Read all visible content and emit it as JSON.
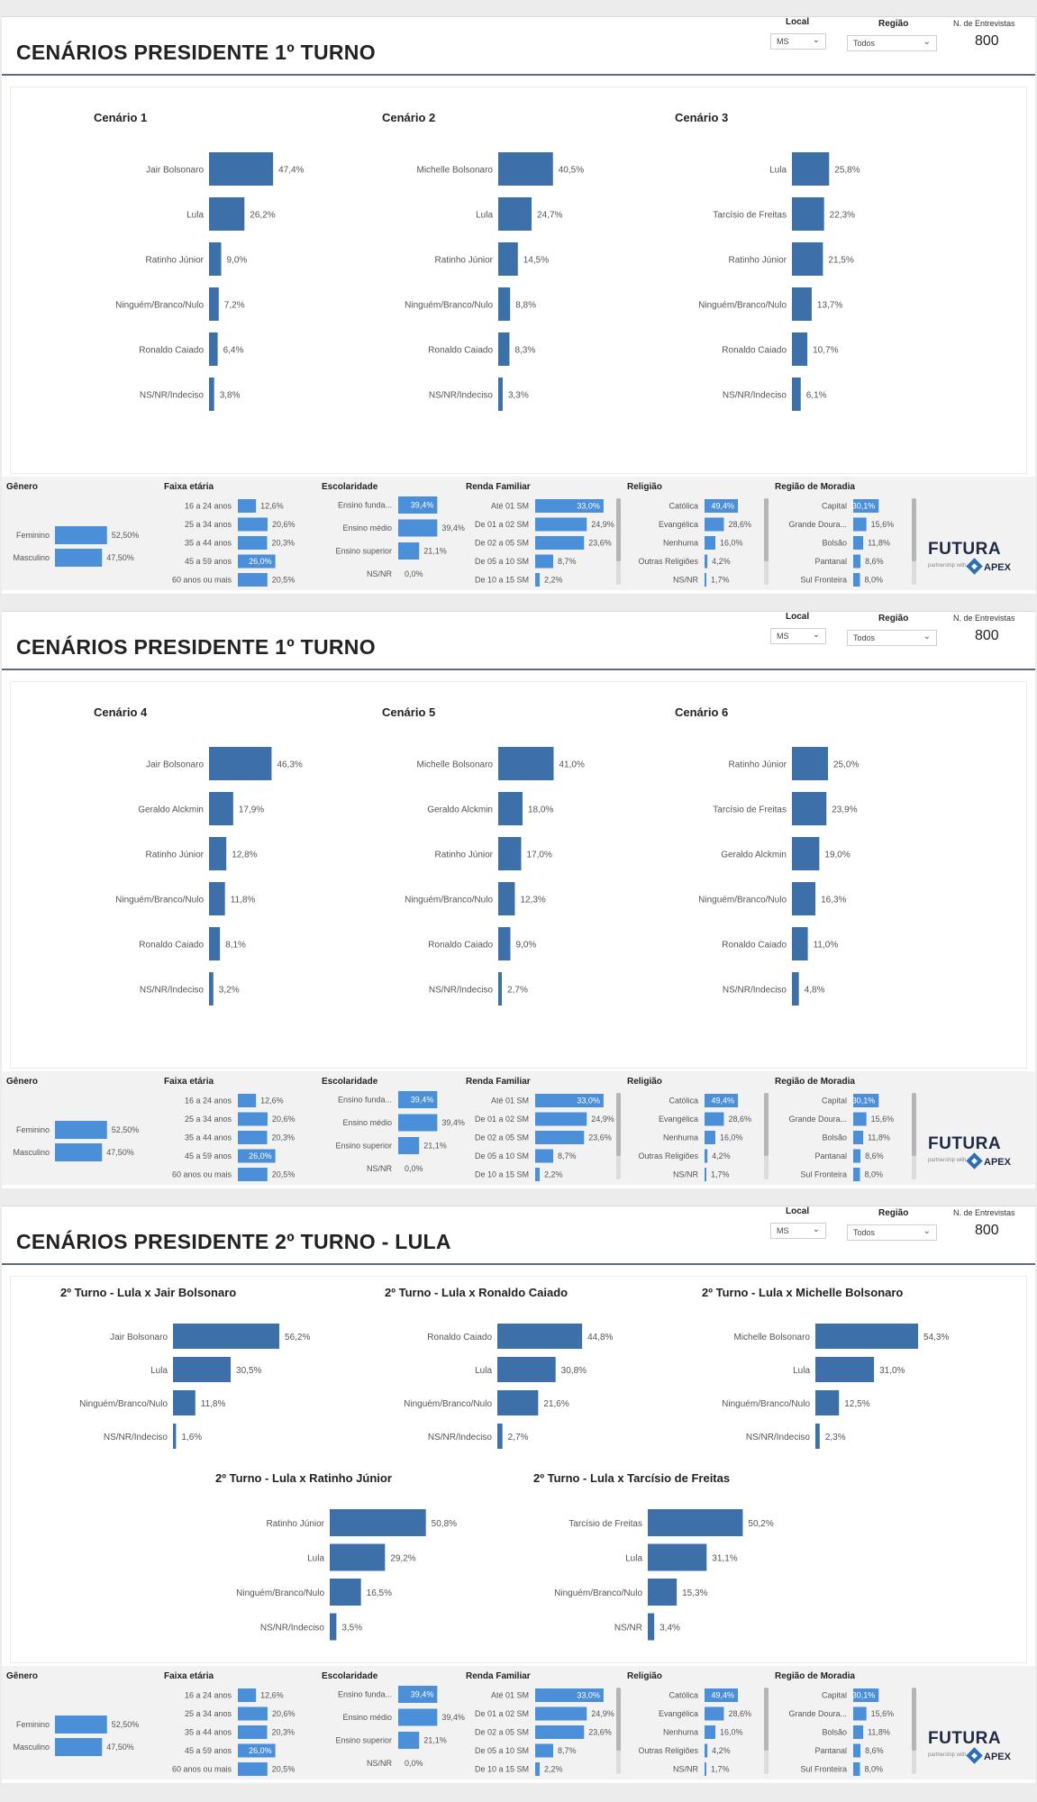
{
  "filters": {
    "local_label": "Local",
    "local_value": "MS",
    "regiao_label": "Região",
    "regiao_value": "Todos",
    "entrevistas_label": "N. de Entrevistas",
    "entrevistas_value": "800"
  },
  "logo": {
    "main": "FUTURA",
    "sub": "partnership with",
    "brand": "APEX"
  },
  "colors": {
    "bar": "#3d6fa8",
    "demo_bar": "#4a8fd8",
    "highlight": "#4a8fd8"
  },
  "sections": [
    {
      "title": "CENÁRIOS PRESIDENTE 1º TURNO",
      "layout": "first",
      "charts": [
        {
          "title": "Cenário 1",
          "items": [
            [
              "Jair Bolsonaro",
              47.4,
              "47,4%"
            ],
            [
              "Lula",
              26.2,
              "26,2%"
            ],
            [
              "Ratinho Júnior",
              9.0,
              "9,0%"
            ],
            [
              "Ninguém/Branco/Nulo",
              7.2,
              "7,2%"
            ],
            [
              "Ronaldo Caiado",
              6.4,
              "6,4%"
            ],
            [
              "NS/NR/Indeciso",
              3.8,
              "3,8%"
            ]
          ]
        },
        {
          "title": "Cenário 2",
          "items": [
            [
              "Michelle Bolsonaro",
              40.5,
              "40,5%"
            ],
            [
              "Lula",
              24.7,
              "24,7%"
            ],
            [
              "Ratinho Júnior",
              14.5,
              "14,5%"
            ],
            [
              "Ninguém/Branco/Nulo",
              8.8,
              "8,8%"
            ],
            [
              "Ronaldo Caiado",
              8.3,
              "8,3%"
            ],
            [
              "NS/NR/Indeciso",
              3.3,
              "3,3%"
            ]
          ]
        },
        {
          "title": "Cenário 3",
          "items": [
            [
              "Lula",
              25.8,
              "25,8%"
            ],
            [
              "Tarcísio de Freitas",
              22.3,
              "22,3%"
            ],
            [
              "Ratinho Júnior",
              21.5,
              "21,5%"
            ],
            [
              "Ninguém/Branco/Nulo",
              13.7,
              "13,7%"
            ],
            [
              "Ronaldo Caiado",
              10.7,
              "10,7%"
            ],
            [
              "NS/NR/Indeciso",
              6.1,
              "6,1%"
            ]
          ]
        }
      ]
    },
    {
      "title": "CENÁRIOS PRESIDENTE 1º TURNO",
      "layout": "first",
      "charts": [
        {
          "title": "Cenário 4",
          "items": [
            [
              "Jair Bolsonaro",
              46.3,
              "46,3%"
            ],
            [
              "Geraldo Alckmin",
              17.9,
              "17,9%"
            ],
            [
              "Ratinho Júnior",
              12.8,
              "12,8%"
            ],
            [
              "Ninguém/Branco/Nulo",
              11.8,
              "11,8%"
            ],
            [
              "Ronaldo Caiado",
              8.1,
              "8,1%"
            ],
            [
              "NS/NR/Indeciso",
              3.2,
              "3,2%"
            ]
          ]
        },
        {
          "title": "Cenário 5",
          "items": [
            [
              "Michelle Bolsonaro",
              41.0,
              "41,0%"
            ],
            [
              "Geraldo Alckmin",
              18.0,
              "18,0%"
            ],
            [
              "Ratinho Júnior",
              17.0,
              "17,0%"
            ],
            [
              "Ninguém/Branco/Nulo",
              12.3,
              "12,3%"
            ],
            [
              "Ronaldo Caiado",
              9.0,
              "9,0%"
            ],
            [
              "NS/NR/Indeciso",
              2.7,
              "2,7%"
            ]
          ]
        },
        {
          "title": "Cenário 6",
          "items": [
            [
              "Ratinho Júnior",
              25.0,
              "25,0%"
            ],
            [
              "Tarcísio de Freitas",
              23.9,
              "23,9%"
            ],
            [
              "Geraldo Alckmin",
              19.0,
              "19,0%"
            ],
            [
              "Ninguém/Branco/Nulo",
              16.3,
              "16,3%"
            ],
            [
              "Ronaldo Caiado",
              11.0,
              "11,0%"
            ],
            [
              "NS/NR/Indeciso",
              4.8,
              "4,8%"
            ]
          ]
        }
      ]
    },
    {
      "title": "CENÁRIOS PRESIDENTE 2º TURNO - LULA",
      "layout": "second",
      "charts": [
        {
          "title": "2º Turno - Lula x Jair Bolsonaro",
          "items": [
            [
              "Jair Bolsonaro",
              56.2,
              "56,2%"
            ],
            [
              "Lula",
              30.5,
              "30,5%"
            ],
            [
              "Ninguém/Branco/Nulo",
              11.8,
              "11,8%"
            ],
            [
              "NS/NR/Indeciso",
              1.6,
              "1,6%"
            ]
          ]
        },
        {
          "title": "2º Turno - Lula x Ronaldo Caiado",
          "items": [
            [
              "Ronaldo Caiado",
              44.8,
              "44,8%"
            ],
            [
              "Lula",
              30.8,
              "30,8%"
            ],
            [
              "Ninguém/Branco/Nulo",
              21.6,
              "21,6%"
            ],
            [
              "NS/NR/Indeciso",
              2.7,
              "2,7%"
            ]
          ]
        },
        {
          "title": "2º Turno - Lula x Michelle Bolsonaro",
          "items": [
            [
              "Michelle Bolsonaro",
              54.3,
              "54,3%"
            ],
            [
              "Lula",
              31.0,
              "31,0%"
            ],
            [
              "Ninguém/Branco/Nulo",
              12.5,
              "12,5%"
            ],
            [
              "NS/NR/Indeciso",
              2.3,
              "2,3%"
            ]
          ]
        },
        {
          "title": "2º Turno - Lula x Ratinho Júnior",
          "items": [
            [
              "Ratinho Júnior",
              50.8,
              "50,8%"
            ],
            [
              "Lula",
              29.2,
              "29,2%"
            ],
            [
              "Ninguém/Branco/Nulo",
              16.5,
              "16,5%"
            ],
            [
              "NS/NR/Indeciso",
              3.5,
              "3,5%"
            ]
          ]
        },
        {
          "title": "2º Turno - Lula x Tarcísio de Freitas",
          "items": [
            [
              "Tarcísio de Freitas",
              50.2,
              "50,2%"
            ],
            [
              "Lula",
              31.1,
              "31,1%"
            ],
            [
              "Ninguém/Branco/Nulo",
              15.3,
              "15,3%"
            ],
            [
              "NS/NR",
              3.4,
              "3,4%"
            ]
          ]
        }
      ]
    }
  ],
  "demographics": {
    "genero": {
      "title": "Gênero",
      "items": [
        [
          "Feminino",
          52.5,
          "52,50%"
        ],
        [
          "Masculino",
          47.5,
          "47,50%"
        ]
      ]
    },
    "faixa": {
      "title": "Faixa etária",
      "highlight_index": 3,
      "items": [
        [
          "16 a 24 anos",
          12.6,
          "12,6%"
        ],
        [
          "25 a 34 anos",
          20.6,
          "20,6%"
        ],
        [
          "35 a 44 anos",
          20.3,
          "20,3%"
        ],
        [
          "45 a 59 anos",
          26.0,
          "26,0%"
        ],
        [
          "60 anos ou mais",
          20.5,
          "20,5%"
        ]
      ]
    },
    "escolaridade": {
      "title": "Escolaridade",
      "highlight_index": 0,
      "items": [
        [
          "Ensino funda...",
          39.4,
          "39,4%"
        ],
        [
          "Ensino médio",
          39.4,
          "39,4%"
        ],
        [
          "Ensino superior",
          21.1,
          "21,1%"
        ],
        [
          "NS/NR",
          0.0,
          "0,0%"
        ]
      ]
    },
    "renda": {
      "title": "Renda Familiar",
      "highlight_index": 0,
      "items": [
        [
          "Até 01 SM",
          33.0,
          "33,0%"
        ],
        [
          "De 01 a 02 SM",
          24.9,
          "24,9%"
        ],
        [
          "De 02 a 05 SM",
          23.6,
          "23,6%"
        ],
        [
          "De 05 a 10 SM",
          8.7,
          "8,7%"
        ],
        [
          "De 10 a 15 SM",
          2.2,
          "2,2%"
        ]
      ]
    },
    "religiao": {
      "title": "Religião",
      "highlight_index": 0,
      "items": [
        [
          "Católica",
          49.4,
          "49,4%"
        ],
        [
          "Evangélica",
          28.6,
          "28,6%"
        ],
        [
          "Nenhuma",
          16.0,
          "16,0%"
        ],
        [
          "Outras Religiões",
          4.2,
          "4,2%"
        ],
        [
          "NS/NR",
          1.7,
          "1,7%"
        ]
      ]
    },
    "moradia": {
      "title": "Região de Moradia",
      "highlight_index": 0,
      "items": [
        [
          "Capital",
          30.1,
          "30,1%"
        ],
        [
          "Grande Doura...",
          15.6,
          "15,6%"
        ],
        [
          "Bolsão",
          11.8,
          "11,8%"
        ],
        [
          "Pantanal",
          8.6,
          "8,6%"
        ],
        [
          "Sul Fronteira",
          8.0,
          "8,0%"
        ]
      ]
    }
  },
  "chart_data": [
    {
      "type": "bar",
      "orientation": "horizontal",
      "title": "Cenário 1",
      "categories": [
        "Jair Bolsonaro",
        "Lula",
        "Ratinho Júnior",
        "Ninguém/Branco/Nulo",
        "Ronaldo Caiado",
        "NS/NR/Indeciso"
      ],
      "values": [
        47.4,
        26.2,
        9.0,
        7.2,
        6.4,
        3.8
      ],
      "unit": "%"
    },
    {
      "type": "bar",
      "orientation": "horizontal",
      "title": "Cenário 2",
      "categories": [
        "Michelle Bolsonaro",
        "Lula",
        "Ratinho Júnior",
        "Ninguém/Branco/Nulo",
        "Ronaldo Caiado",
        "NS/NR/Indeciso"
      ],
      "values": [
        40.5,
        24.7,
        14.5,
        8.8,
        8.3,
        3.3
      ],
      "unit": "%"
    },
    {
      "type": "bar",
      "orientation": "horizontal",
      "title": "Cenário 3",
      "categories": [
        "Lula",
        "Tarcísio de Freitas",
        "Ratinho Júnior",
        "Ninguém/Branco/Nulo",
        "Ronaldo Caiado",
        "NS/NR/Indeciso"
      ],
      "values": [
        25.8,
        22.3,
        21.5,
        13.7,
        10.7,
        6.1
      ],
      "unit": "%"
    },
    {
      "type": "bar",
      "orientation": "horizontal",
      "title": "Cenário 4",
      "categories": [
        "Jair Bolsonaro",
        "Geraldo Alckmin",
        "Ratinho Júnior",
        "Ninguém/Branco/Nulo",
        "Ronaldo Caiado",
        "NS/NR/Indeciso"
      ],
      "values": [
        46.3,
        17.9,
        12.8,
        11.8,
        8.1,
        3.2
      ],
      "unit": "%"
    },
    {
      "type": "bar",
      "orientation": "horizontal",
      "title": "Cenário 5",
      "categories": [
        "Michelle Bolsonaro",
        "Geraldo Alckmin",
        "Ratinho Júnior",
        "Ninguém/Branco/Nulo",
        "Ronaldo Caiado",
        "NS/NR/Indeciso"
      ],
      "values": [
        41.0,
        18.0,
        17.0,
        12.3,
        9.0,
        2.7
      ],
      "unit": "%"
    },
    {
      "type": "bar",
      "orientation": "horizontal",
      "title": "Cenário 6",
      "categories": [
        "Ratinho Júnior",
        "Tarcísio de Freitas",
        "Geraldo Alckmin",
        "Ninguém/Branco/Nulo",
        "Ronaldo Caiado",
        "NS/NR/Indeciso"
      ],
      "values": [
        25.0,
        23.9,
        19.0,
        16.3,
        11.0,
        4.8
      ],
      "unit": "%"
    },
    {
      "type": "bar",
      "orientation": "horizontal",
      "title": "2º Turno - Lula x Jair Bolsonaro",
      "categories": [
        "Jair Bolsonaro",
        "Lula",
        "Ninguém/Branco/Nulo",
        "NS/NR/Indeciso"
      ],
      "values": [
        56.2,
        30.5,
        11.8,
        1.6
      ],
      "unit": "%"
    },
    {
      "type": "bar",
      "orientation": "horizontal",
      "title": "2º Turno - Lula x Ronaldo Caiado",
      "categories": [
        "Ronaldo Caiado",
        "Lula",
        "Ninguém/Branco/Nulo",
        "NS/NR/Indeciso"
      ],
      "values": [
        44.8,
        30.8,
        21.6,
        2.7
      ],
      "unit": "%"
    },
    {
      "type": "bar",
      "orientation": "horizontal",
      "title": "2º Turno - Lula x Michelle Bolsonaro",
      "categories": [
        "Michelle Bolsonaro",
        "Lula",
        "Ninguém/Branco/Nulo",
        "NS/NR/Indeciso"
      ],
      "values": [
        54.3,
        31.0,
        12.5,
        2.3
      ],
      "unit": "%"
    },
    {
      "type": "bar",
      "orientation": "horizontal",
      "title": "2º Turno - Lula x Ratinho Júnior",
      "categories": [
        "Ratinho Júnior",
        "Lula",
        "Ninguém/Branco/Nulo",
        "NS/NR/Indeciso"
      ],
      "values": [
        50.8,
        29.2,
        16.5,
        3.5
      ],
      "unit": "%"
    },
    {
      "type": "bar",
      "orientation": "horizontal",
      "title": "2º Turno - Lula x Tarcísio de Freitas",
      "categories": [
        "Tarcísio de Freitas",
        "Lula",
        "Ninguém/Branco/Nulo",
        "NS/NR"
      ],
      "values": [
        50.2,
        31.1,
        15.3,
        3.4
      ],
      "unit": "%"
    }
  ]
}
